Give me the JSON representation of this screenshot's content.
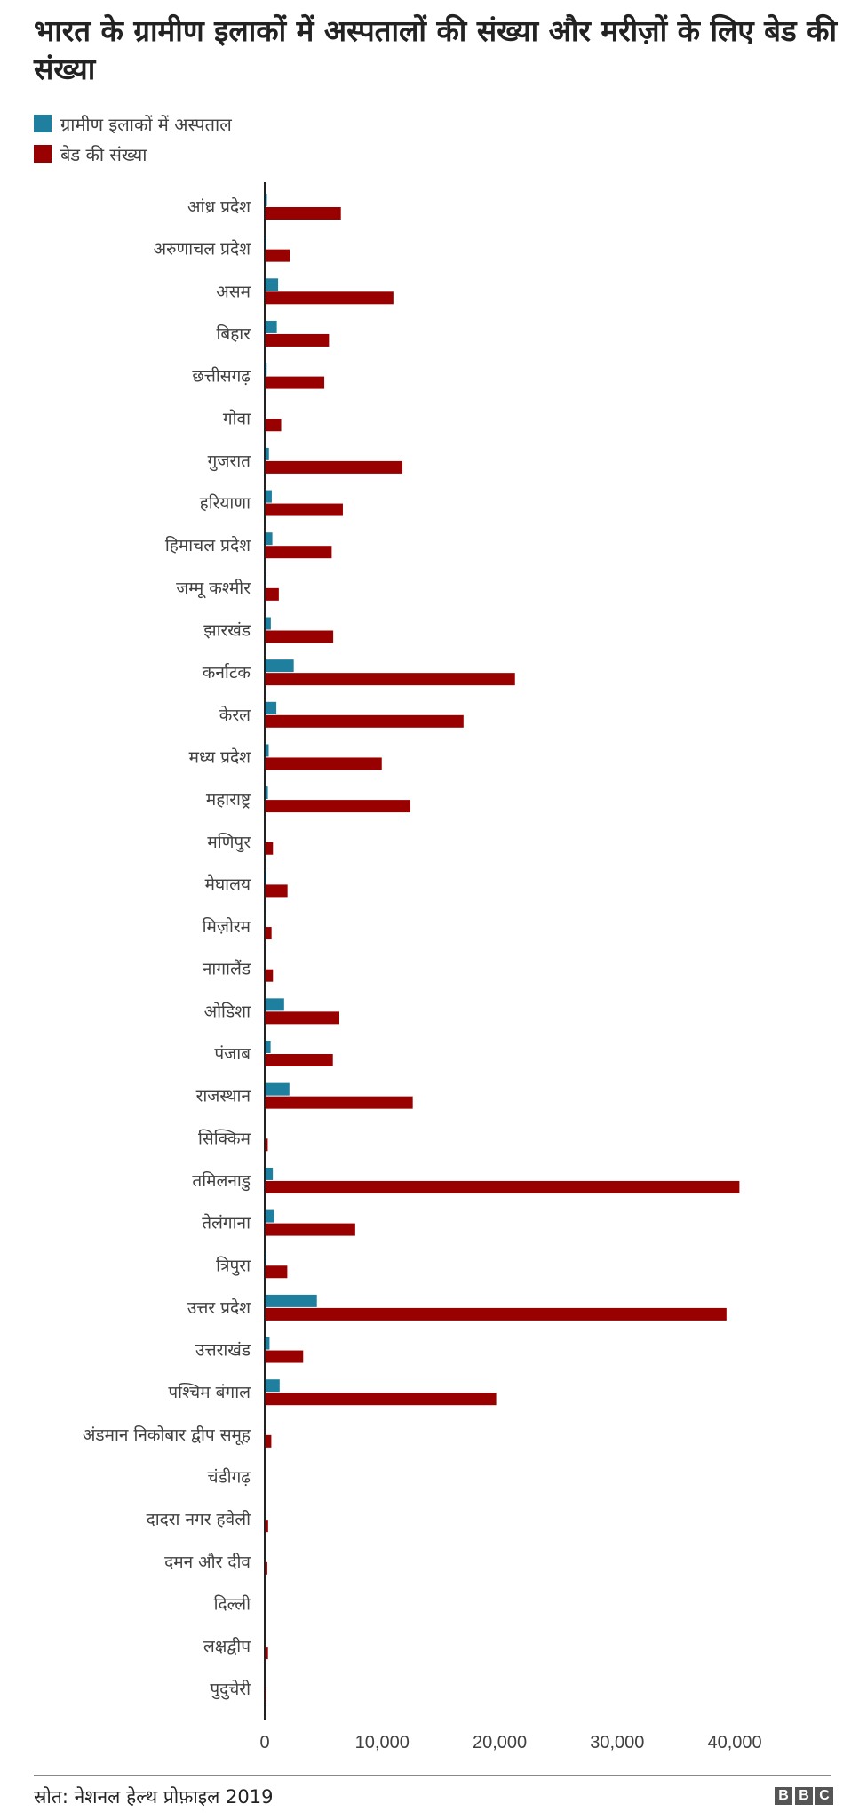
{
  "chart_data": {
    "type": "bar",
    "orientation": "horizontal",
    "title": "भारत के ग्रामीण इलाकों में अस्पतालों की संख्या और मरीज़ों के लिए बेड की संख्या",
    "categories": [
      "आंध्र प्रदेश",
      "अरुणाचल प्रदेश",
      "असम",
      "बिहार",
      "छत्तीसगढ़",
      "गोवा",
      "गुजरात",
      "हरियाणा",
      "हिमाचल प्रदेश",
      "जम्मू कश्मीर",
      "झारखंड",
      "कर्नाटक",
      "केरल",
      "मध्य प्रदेश",
      "महाराष्ट्र",
      "मणिपुर",
      "मेघालय",
      "मिज़ोरम",
      "नागालैंड",
      "ओडिशा",
      "पंजाब",
      "राजस्थान",
      "सिक्किम",
      "तमिलनाडु",
      "तेलंगाना",
      "त्रिपुरा",
      "उत्तर प्रदेश",
      "उत्तराखंड",
      "पश्चिम बंगाल",
      "अंडमान निकोबार द्वीप समूह",
      "चंडीगढ़",
      "दादरा नगर हवेली",
      "दमन और दीव",
      "दिल्ली",
      "लक्षद्वीप",
      "पुदुचेरी"
    ],
    "series": [
      {
        "name": "ग्रामीण इलाकों में अस्पताल",
        "color": "#1f7f9e",
        "values": [
          190,
          140,
          1140,
          1030,
          170,
          40,
          360,
          600,
          650,
          100,
          520,
          2470,
          990,
          340,
          270,
          30,
          150,
          90,
          40,
          1650,
          500,
          2100,
          30,
          690,
          800,
          130,
          4440,
          410,
          1270,
          30,
          0,
          10,
          10,
          0,
          10,
          10
        ]
      },
      {
        "name": "बेड की संख्या",
        "color": "#990000",
        "values": [
          6480,
          2140,
          10950,
          5470,
          5070,
          1400,
          11720,
          6650,
          5700,
          1200,
          5830,
          21300,
          16920,
          9960,
          12400,
          700,
          1940,
          580,
          700,
          6350,
          5800,
          12600,
          260,
          40400,
          7700,
          1920,
          39300,
          3270,
          19700,
          560,
          0,
          290,
          220,
          0,
          280,
          120
        ]
      }
    ],
    "xlim": [
      0,
      44000
    ],
    "xticks": [
      0,
      10000,
      20000,
      30000,
      40000
    ],
    "xtick_labels": [
      "0",
      "10,000",
      "20,000",
      "30,000",
      "40,000"
    ],
    "grid": false,
    "legend_position": "top-left"
  },
  "legend": [
    "ग्रामीण इलाकों में अस्पताल",
    "बेड की संख्या"
  ],
  "footer": {
    "source": "स्रोत: नेशनल हेल्थ प्रोफ़ाइल 2019",
    "logo": "BBC"
  }
}
